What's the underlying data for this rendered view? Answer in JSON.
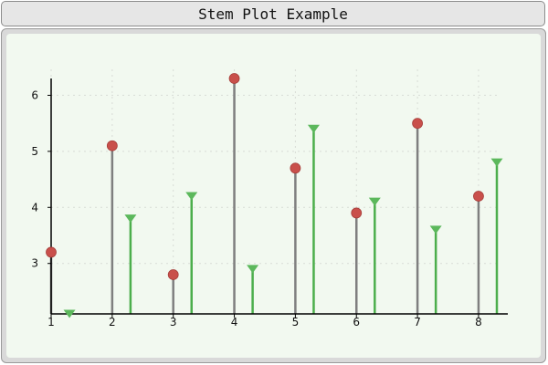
{
  "window": {
    "title": "Stem Plot Example"
  },
  "chart_data": {
    "type": "stem",
    "title": "",
    "xlabel": "",
    "ylabel": "",
    "xlim": [
      1,
      8.3
    ],
    "ylim": [
      2.1,
      6.3
    ],
    "grid": true,
    "x_ticks": [
      "1",
      "2",
      "3",
      "4",
      "5",
      "6",
      "7",
      "8"
    ],
    "y_ticks": [
      "3",
      "4",
      "5",
      "6"
    ],
    "series": [
      {
        "marker": "circle",
        "color": "#c9504b",
        "stem_color": "#7f7f7f",
        "x": [
          1,
          2,
          3,
          4,
          5,
          6,
          7,
          8
        ],
        "y": [
          3.2,
          5.1,
          2.8,
          6.3,
          4.7,
          3.9,
          5.5,
          4.2
        ]
      },
      {
        "marker": "triangle-down",
        "color": "#5cb85c",
        "stem_color": "#4cae4c",
        "x": [
          1.3,
          2.3,
          3.3,
          4.3,
          5.3,
          6.3,
          7.3,
          8.3
        ],
        "y": [
          2.1,
          3.8,
          4.2,
          2.9,
          5.4,
          4.1,
          3.6,
          4.8
        ]
      }
    ]
  }
}
